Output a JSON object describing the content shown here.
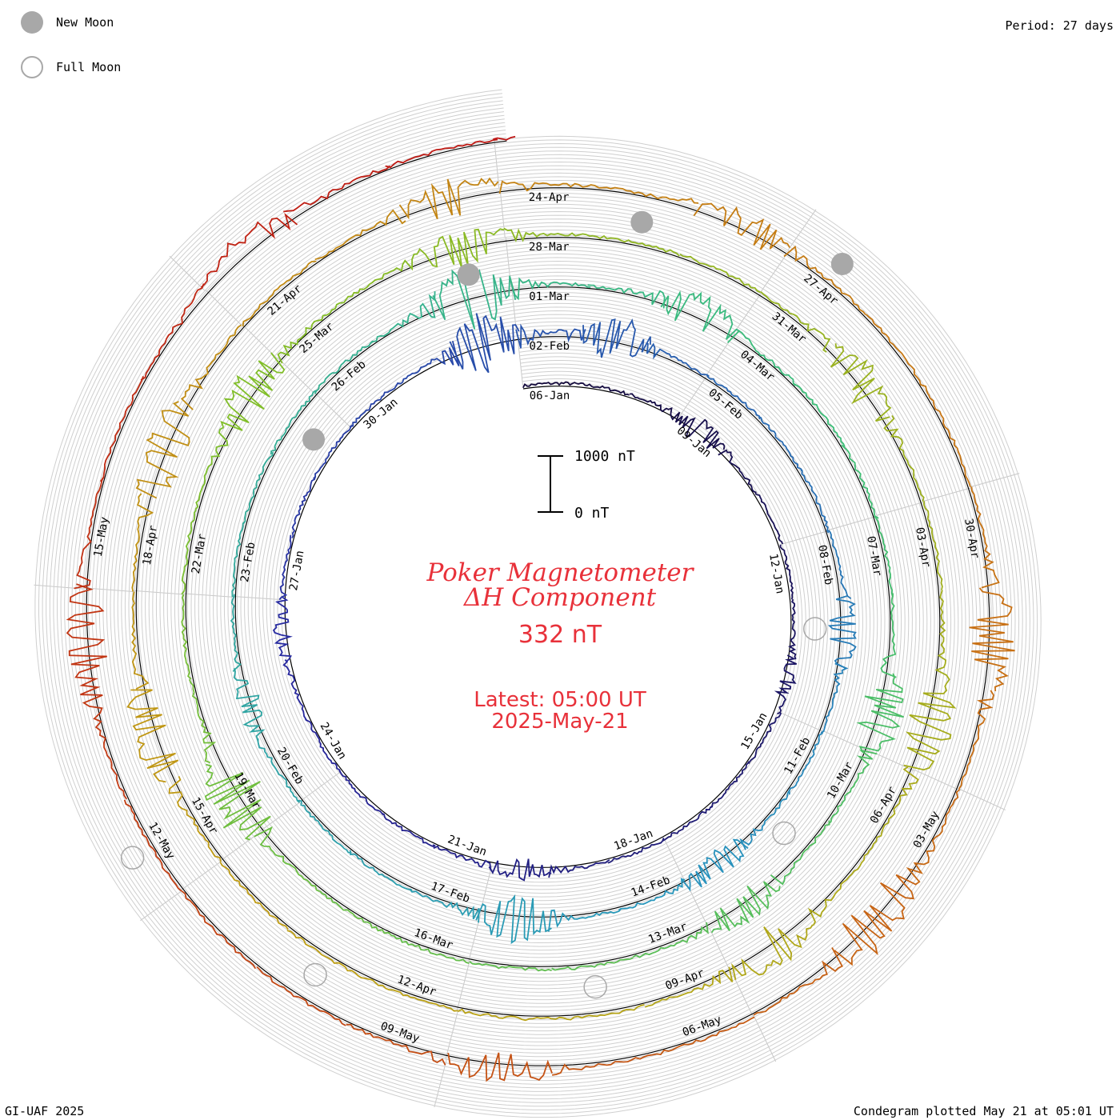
{
  "legend": {
    "new_moon": {
      "label": "New Moon",
      "color": "#a8a8a8"
    },
    "full_moon": {
      "label": "Full Moon",
      "color": "#ffffff",
      "stroke": "#a8a8a8"
    }
  },
  "period_label": "Period: 27 days",
  "footer_left": "GI-UAF 2025",
  "footer_right": "Condegram plotted May 21 at 05:01 UT",
  "center": {
    "title_line1": "Poker Magnetometer",
    "title_line2": "ΔH Component",
    "current_value": "332 nT",
    "latest_line1": "Latest: 05:00 UT",
    "latest_line2": "2025-May-21"
  },
  "chart_data": {
    "type": "line",
    "subtype": "spiral condegram",
    "title": "Poker Magnetometer ΔH Component",
    "period_days": 27,
    "start_date": "2025-01-06",
    "end_date": "2025-05-21",
    "scale_bar": {
      "top_label": "1000 nT",
      "bottom_label": "0 nT",
      "value_nT": 1000
    },
    "grid": true,
    "date_labels": [
      "06-Jan",
      "09-Jan",
      "12-Jan",
      "15-Jan",
      "18-Jan",
      "21-Jan",
      "24-Jan",
      "27-Jan",
      "30-Jan",
      "02-Feb",
      "05-Feb",
      "08-Feb",
      "11-Feb",
      "14-Feb",
      "17-Feb",
      "20-Feb",
      "23-Feb",
      "26-Feb",
      "01-Mar",
      "04-Mar",
      "07-Mar",
      "10-Mar",
      "13-Mar",
      "16-Mar",
      "19-Mar",
      "22-Mar",
      "25-Mar",
      "28-Mar",
      "31-Mar",
      "03-Apr",
      "06-Apr",
      "09-Apr",
      "12-Apr",
      "15-Apr",
      "18-Apr",
      "21-Apr",
      "24-Apr",
      "27-Apr",
      "30-Apr",
      "03-May",
      "06-May",
      "09-May",
      "12-May",
      "15-May"
    ],
    "disturbances": [
      {
        "date": "2025-01-09",
        "nT": 220
      },
      {
        "date": "2025-01-14",
        "nT": 140
      },
      {
        "date": "2025-01-20",
        "nT": 200
      },
      {
        "date": "2025-01-26",
        "nT": 160
      },
      {
        "date": "2025-02-01",
        "nT": 560
      },
      {
        "date": "2025-02-03",
        "nT": 420
      },
      {
        "date": "2025-02-09",
        "nT": 300
      },
      {
        "date": "2025-02-13",
        "nT": 260
      },
      {
        "date": "2025-02-16",
        "nT": 460
      },
      {
        "date": "2025-02-21",
        "nT": 220
      },
      {
        "date": "2025-02-28",
        "nT": 620
      },
      {
        "date": "2025-03-03",
        "nT": 380
      },
      {
        "date": "2025-03-09",
        "nT": 420
      },
      {
        "date": "2025-03-12",
        "nT": 300
      },
      {
        "date": "2025-03-19",
        "nT": 560
      },
      {
        "date": "2025-03-24",
        "nT": 400
      },
      {
        "date": "2025-03-27",
        "nT": 380
      },
      {
        "date": "2025-04-01",
        "nT": 360
      },
      {
        "date": "2025-04-05",
        "nT": 460
      },
      {
        "date": "2025-04-08",
        "nT": 400
      },
      {
        "date": "2025-04-16",
        "nT": 420
      },
      {
        "date": "2025-04-19",
        "nT": 460
      },
      {
        "date": "2025-04-23",
        "nT": 360
      },
      {
        "date": "2025-04-26",
        "nT": 300
      },
      {
        "date": "2025-05-01",
        "nT": 480
      },
      {
        "date": "2025-05-04",
        "nT": 500
      },
      {
        "date": "2025-05-08",
        "nT": 300
      },
      {
        "date": "2025-05-14",
        "nT": 460
      },
      {
        "date": "2025-05-18",
        "nT": 360
      }
    ],
    "new_moons": [
      "2025-01-29",
      "2025-02-28",
      "2025-03-29",
      "2025-04-27"
    ],
    "full_moons": [
      "2025-01-13",
      "2025-02-12",
      "2025-03-14",
      "2025-04-13",
      "2025-05-12"
    ],
    "latest": {
      "time": "05:00 UT",
      "date": "2025-May-21",
      "value_nT": 332
    }
  }
}
